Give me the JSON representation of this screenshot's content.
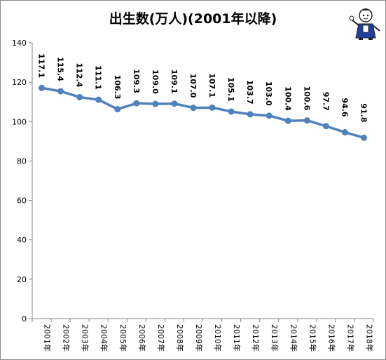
{
  "chart_data": {
    "type": "line",
    "title": "出生数(万人)(2001年以降)",
    "categories": [
      "2001年",
      "2002年",
      "2003年",
      "2004年",
      "2005年",
      "2006年",
      "2007年",
      "2008年",
      "2009年",
      "2010年",
      "2011年",
      "2012年",
      "2013年",
      "2014年",
      "2015年",
      "2016年",
      "2017年",
      "2018年"
    ],
    "values": [
      117.1,
      115.4,
      112.4,
      111.1,
      106.3,
      109.3,
      109.0,
      109.1,
      107.0,
      107.1,
      105.1,
      103.7,
      103.0,
      100.4,
      100.6,
      97.7,
      94.6,
      91.8
    ],
    "value_labels": [
      "117.1",
      "115.4",
      "112.4",
      "111.1",
      "106.3",
      "109.3",
      "109.0",
      "109.1",
      "107.0",
      "107.1",
      "105.1",
      "103.7",
      "103.0",
      "100.4",
      "100.6",
      "97.7",
      "94.6",
      "91.8"
    ],
    "ylim": [
      0,
      140
    ],
    "yticks": [
      0,
      20,
      40,
      60,
      80,
      100,
      120,
      140
    ],
    "grid": false,
    "legend": "none",
    "series_color": "#4f81bd"
  }
}
